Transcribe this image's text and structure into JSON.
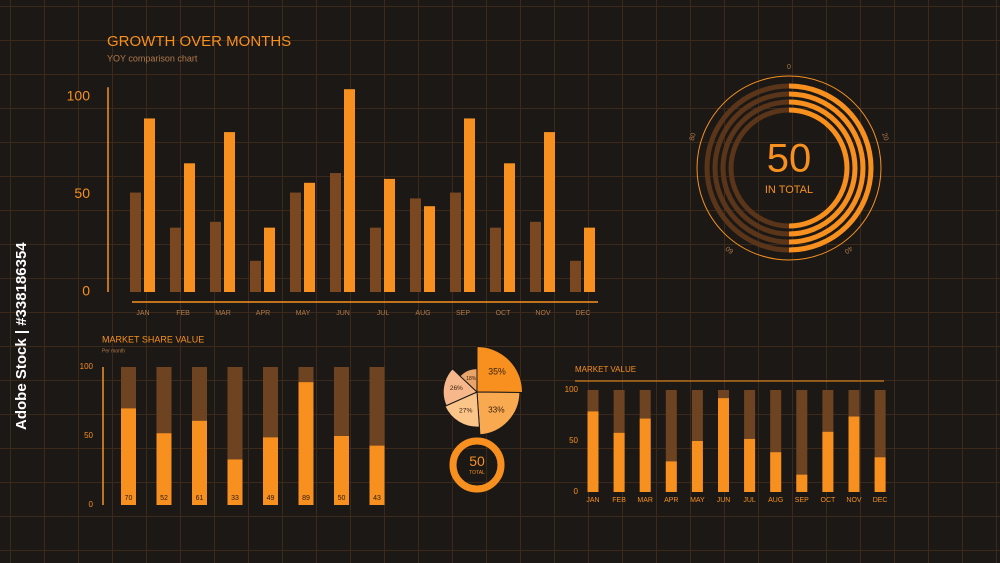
{
  "watermark": "Adobe Stock | #338186354",
  "chart_data": [
    {
      "type": "grouped-bar",
      "title": "GROWTH OVER MONTHS",
      "subtitle": "YOY comparison chart",
      "categories": [
        "JAN",
        "FEB",
        "MAR",
        "APR",
        "MAY",
        "JUN",
        "JUL",
        "AUG",
        "SEP",
        "OCT",
        "NOV",
        "DEC"
      ],
      "series": [
        {
          "color": "#7a4820",
          "values": [
            51,
            33,
            36,
            16,
            51,
            61,
            33,
            48,
            51,
            33,
            36,
            16
          ]
        },
        {
          "color": "#f7901e",
          "values": [
            89,
            66,
            82,
            33,
            56,
            104,
            58,
            44,
            89,
            66,
            82,
            33
          ]
        }
      ],
      "ylim": [
        0,
        105
      ],
      "yticks": [
        0,
        50,
        100
      ]
    },
    {
      "type": "gauge",
      "value": 50,
      "label": "IN TOTAL",
      "ylim": [
        0,
        100
      ],
      "yticks": [
        0,
        20,
        40,
        60,
        80
      ],
      "color": "#f7901e",
      "track_color": "#5a3519"
    },
    {
      "type": "bar",
      "title": "MARKET SHARE VALUE",
      "subtitle": "Per month",
      "values": [
        70,
        52,
        61,
        33,
        49,
        89,
        50,
        43
      ],
      "color": "#f7901e",
      "track_color": "#6e4322",
      "data_labels": true,
      "ylim": [
        0,
        100
      ],
      "yticks": [
        0,
        50,
        100
      ]
    },
    {
      "type": "pie",
      "values": [
        35,
        33,
        27,
        26,
        18
      ],
      "value_labels": [
        "35%",
        "33%",
        "27%",
        "26%",
        "18%"
      ],
      "colors": [
        "#f7901e",
        "#f9a94f",
        "#fbc58a",
        "#f6b88a",
        "#e9a46a"
      ]
    },
    {
      "type": "gauge",
      "value": 50,
      "label": "TOTAL",
      "ylim": [
        0,
        50
      ],
      "color": "#f7901e",
      "track_color": "#5a3519"
    },
    {
      "type": "bar",
      "title": "MARKET VALUE",
      "categories": [
        "JAN",
        "FEB",
        "MAR",
        "APR",
        "MAY",
        "JUN",
        "JUL",
        "AUG",
        "SEP",
        "OCT",
        "NOV",
        "DEC"
      ],
      "values": [
        79,
        58,
        72,
        30,
        50,
        92,
        52,
        39,
        17,
        59,
        74,
        34
      ],
      "color": "#f7901e",
      "track_color": "#6e4322",
      "ylim": [
        0,
        100
      ],
      "yticks": [
        0,
        50,
        100
      ]
    }
  ]
}
